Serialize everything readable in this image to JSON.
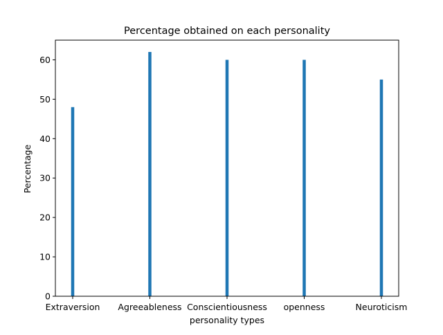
{
  "chart_data": {
    "type": "bar",
    "title": "Percentage obtained on each personality",
    "xlabel": "personality types",
    "ylabel": "Percentage",
    "categories": [
      "Extraversion",
      "Agreeableness",
      "Conscientiousness",
      "openness",
      "Neuroticism"
    ],
    "values": [
      48,
      62,
      60,
      60,
      55
    ],
    "ylim": [
      0,
      65
    ],
    "yticks": [
      0,
      10,
      20,
      30,
      40,
      50,
      60
    ],
    "grid": false,
    "bar_color": "#1f77b4"
  }
}
